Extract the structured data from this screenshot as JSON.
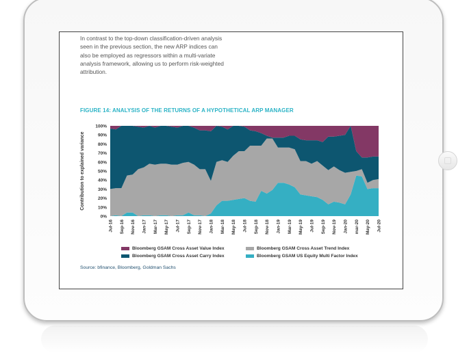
{
  "intro_text": "In contrast to the top-down classification-driven analysis seen in the previous section, the new ARP indices can also be employed as regressors within a multi-variate analysis framework, allowing us to perform risk-weighted attribution.",
  "figure_title": "FIGURE 14: ANALYSIS OF THE RETURNS OF A HYPOTHETICAL ARP MANAGER",
  "source": "Source: bfinance, Bloomberg, Goldman Sachs",
  "chart_data": {
    "type": "area",
    "stacked": true,
    "title": "FIGURE 14: ANALYSIS OF THE RETURNS OF A HYPOTHETICAL ARP MANAGER",
    "xlabel": "",
    "ylabel": "Contribution to explained variance",
    "ylim": [
      0,
      100
    ],
    "yticks": [
      "0%",
      "10%",
      "20%",
      "30%",
      "40%",
      "50%",
      "60%",
      "70%",
      "80%",
      "90%",
      "100%"
    ],
    "xtick_labels": [
      "Jul-16",
      "Sep-16",
      "Nov-16",
      "Jan-17",
      "Mar-17",
      "May-17",
      "Jul-17",
      "Sep-17",
      "Nov-17",
      "Jan-18",
      "Mar-18",
      "May-18",
      "Jul-18",
      "Sep-18",
      "Nov-18",
      "Jan-19",
      "Mar-19",
      "May-19",
      "Jul-19",
      "Sep-19",
      "Nov-19",
      "Jan-20",
      "mar-20",
      "May-20",
      "Jul-20"
    ],
    "months": 49,
    "legend_position": "bottom",
    "series": [
      {
        "name": "Bloomberg GSAM US Equity Multi Factor Index",
        "color": "#35afc3",
        "values": [
          0,
          1,
          0,
          4,
          4,
          0,
          1,
          1,
          0,
          1,
          1,
          0,
          1,
          1,
          4,
          1,
          1,
          0,
          3,
          12,
          17,
          17,
          18,
          19,
          20,
          17,
          16,
          28,
          25,
          29,
          37,
          37,
          35,
          32,
          24,
          23,
          22,
          21,
          18,
          13,
          16,
          15,
          13,
          24,
          45,
          44,
          30,
          31,
          31
        ]
      },
      {
        "name": "Bloomberg GSAM Cross Asset Trend Index",
        "color": "#a7a7a7",
        "values": [
          30,
          30,
          31,
          41,
          42,
          52,
          53,
          57,
          57,
          57,
          57,
          57,
          56,
          58,
          56,
          56,
          51,
          52,
          36,
          48,
          45,
          43,
          49,
          53,
          52,
          61,
          62,
          50,
          61,
          57,
          39,
          39,
          41,
          42,
          37,
          38,
          36,
          40,
          38,
          38,
          39,
          36,
          35,
          25,
          5,
          8,
          7,
          9,
          10
        ]
      },
      {
        "name": "Bloomberg GSAM Cross Asset Carry Index",
        "color": "#0d5670",
        "values": [
          67,
          65,
          69,
          55,
          54,
          47,
          44,
          42,
          41,
          42,
          42,
          42,
          41,
          41,
          40,
          41,
          43,
          43,
          55,
          40,
          37,
          36,
          33,
          28,
          27,
          17,
          16,
          14,
          3,
          1,
          11,
          11,
          13,
          15,
          24,
          23,
          26,
          23,
          26,
          37,
          33,
          38,
          42,
          51,
          22,
          13,
          28,
          26,
          25
        ]
      },
      {
        "name": "Bloomberg GSAM Cross Asset Value Index",
        "color": "#833865",
        "values": [
          3,
          4,
          0,
          0,
          0,
          1,
          2,
          0,
          2,
          0,
          0,
          1,
          2,
          0,
          0,
          2,
          5,
          5,
          6,
          0,
          1,
          4,
          0,
          0,
          1,
          5,
          6,
          8,
          11,
          13,
          13,
          13,
          11,
          11,
          15,
          16,
          16,
          16,
          18,
          12,
          12,
          11,
          10,
          0,
          28,
          35,
          35,
          34,
          34
        ]
      }
    ]
  }
}
